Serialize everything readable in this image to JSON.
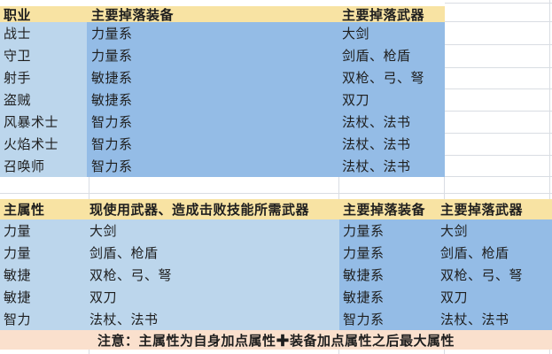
{
  "table1": {
    "headers": [
      "职业",
      "主要掉落装备",
      "主要掉落武器"
    ],
    "rows": [
      [
        "战士",
        "力量系",
        "大剑"
      ],
      [
        "守卫",
        "力量系",
        "剑盾、枪盾"
      ],
      [
        "射手",
        "敏捷系",
        "双枪、弓、弩"
      ],
      [
        "盗贼",
        "敏捷系",
        "双刀"
      ],
      [
        "风暴术士",
        "智力系",
        "法杖、法书"
      ],
      [
        "火焰术士",
        "智力系",
        "法杖、法书"
      ],
      [
        "召唤师",
        "智力系",
        "法杖、法书"
      ]
    ]
  },
  "table2": {
    "headers": [
      "主属性",
      "现使用武器、造成击败技能所需武器",
      "主要掉落装备",
      "主要掉落武器"
    ],
    "rows": [
      [
        "力量",
        "大剑",
        "力量系",
        "大剑"
      ],
      [
        "力量",
        "剑盾、枪盾",
        "力量系",
        "剑盾、枪盾"
      ],
      [
        "敏捷",
        "双枪、弓、弩",
        "敏捷系",
        "双枪、弓、弩"
      ],
      [
        "敏捷",
        "双刀",
        "敏捷系",
        "双刀"
      ],
      [
        "智力",
        "法杖、法书",
        "智力系",
        "法杖、法书"
      ]
    ],
    "note": "注意：主属性为自身加点属性✚装备加点属性之后最大属性"
  },
  "colors": {
    "header_bg": "#f8e3a3",
    "light_blue": "#bcd6ec",
    "dark_blue": "#94bce6",
    "note_bg": "#fae0cd",
    "text": "#1e1e1e",
    "gridline": "#d9dde3"
  }
}
